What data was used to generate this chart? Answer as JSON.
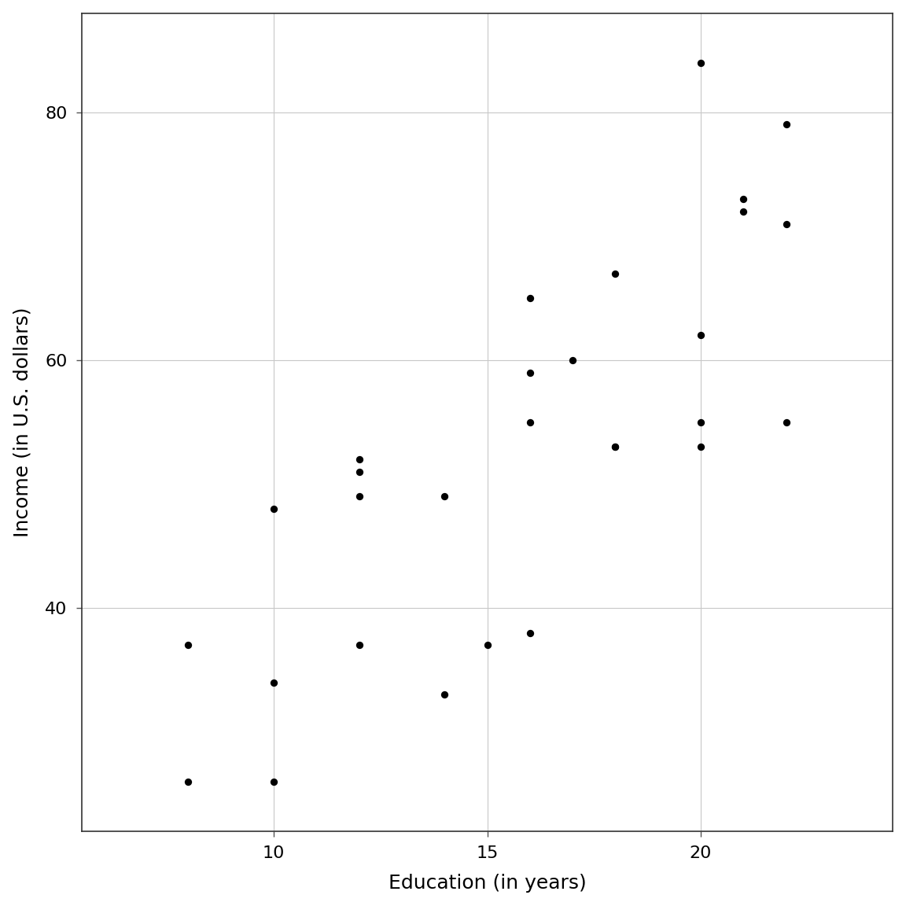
{
  "x": [
    8,
    8,
    10,
    10,
    10,
    12,
    12,
    12,
    12,
    14,
    14,
    15,
    16,
    16,
    16,
    16,
    17,
    18,
    18,
    18,
    20,
    20,
    20,
    20,
    21,
    21,
    22,
    22,
    22
  ],
  "y": [
    37,
    26,
    34,
    48,
    26,
    52,
    51,
    49,
    37,
    49,
    33,
    37,
    65,
    55,
    59,
    38,
    60,
    53,
    53,
    67,
    84,
    55,
    53,
    62,
    73,
    72,
    55,
    71,
    79
  ],
  "xlabel": "Education (in years)",
  "ylabel": "Income (in U.S. dollars)",
  "xlim": [
    5.5,
    24.5
  ],
  "ylim": [
    22,
    88
  ],
  "xticks": [
    10,
    15,
    20
  ],
  "yticks": [
    40,
    60,
    80
  ],
  "dot_color": "#000000",
  "dot_size": 45,
  "background_color": "#ffffff",
  "grid_color": "#c8c8c8",
  "axis_label_fontsize": 18,
  "tick_fontsize": 16
}
